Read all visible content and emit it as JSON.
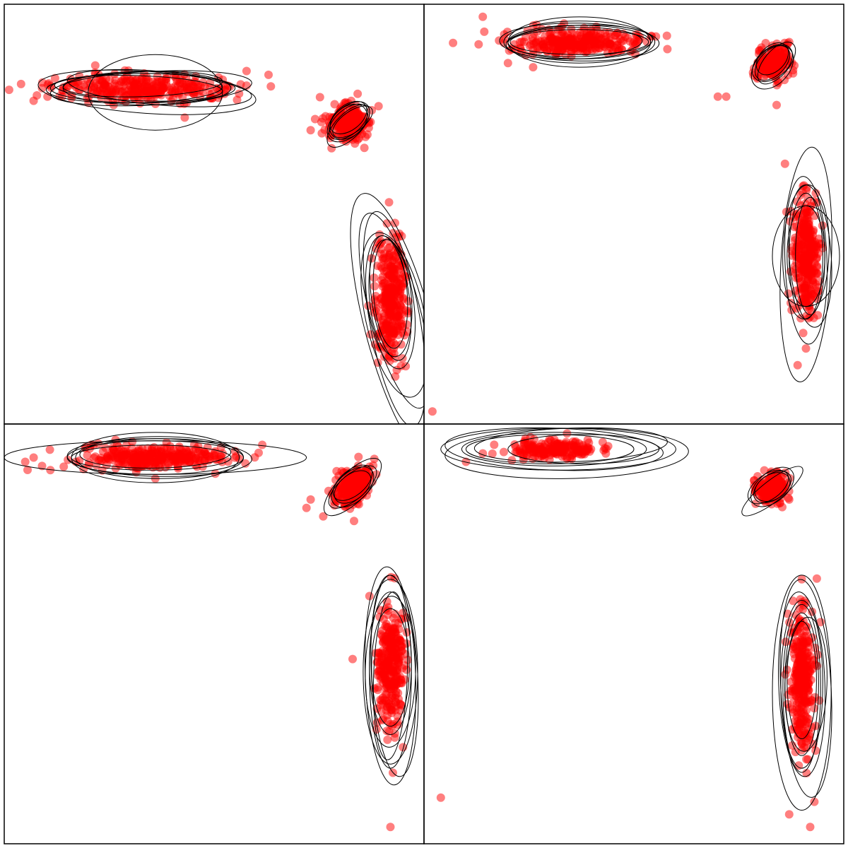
{
  "chart_data": [
    {
      "type": "scatter",
      "title": "",
      "xlabel": "",
      "ylabel": "",
      "xlim": [
        0,
        1
      ],
      "ylim": [
        0,
        1
      ],
      "grid": false,
      "point_color": "#ff0000",
      "ellipse_color": "#000000",
      "clusters": [
        {
          "center": [
            0.33,
            0.8
          ],
          "spread": [
            0.11,
            0.016
          ],
          "rotation_deg": 0,
          "n": 320,
          "outliers": [
            [
              0.04,
              0.81
            ],
            [
              0.07,
              0.77
            ],
            [
              0.09,
              0.8
            ],
            [
              0.43,
              0.73
            ]
          ]
        },
        {
          "center": [
            0.82,
            0.72
          ],
          "spread": [
            0.025,
            0.022
          ],
          "rotation_deg": 40,
          "n": 220,
          "outliers": [
            [
              0.73,
              0.7
            ]
          ]
        },
        {
          "center": [
            0.92,
            0.3
          ],
          "spread": [
            0.018,
            0.08
          ],
          "rotation_deg": 0,
          "n": 320,
          "outliers": [
            [
              0.88,
              0.28
            ]
          ]
        }
      ],
      "ellipses": [
        [
          0.33,
          0.8,
          0.22,
          0.035,
          0
        ],
        [
          0.35,
          0.8,
          0.24,
          0.04,
          3
        ],
        [
          0.32,
          0.8,
          0.2,
          0.03,
          -2
        ],
        [
          0.34,
          0.79,
          0.26,
          0.05,
          -4
        ],
        [
          0.36,
          0.79,
          0.16,
          0.09,
          0
        ],
        [
          0.31,
          0.8,
          0.21,
          0.035,
          1
        ],
        [
          0.37,
          0.8,
          0.22,
          0.04,
          -5
        ],
        [
          0.33,
          0.81,
          0.19,
          0.03,
          2
        ],
        [
          0.34,
          0.8,
          0.2,
          0.04,
          0
        ],
        [
          0.82,
          0.72,
          0.055,
          0.03,
          40
        ],
        [
          0.82,
          0.72,
          0.06,
          0.035,
          42
        ],
        [
          0.82,
          0.73,
          0.05,
          0.03,
          38
        ],
        [
          0.82,
          0.71,
          0.065,
          0.03,
          45
        ],
        [
          0.83,
          0.72,
          0.055,
          0.025,
          35
        ],
        [
          0.82,
          0.72,
          0.05,
          0.035,
          40
        ],
        [
          0.92,
          0.3,
          0.045,
          0.15,
          8
        ],
        [
          0.93,
          0.27,
          0.06,
          0.24,
          15
        ],
        [
          0.94,
          0.23,
          0.08,
          0.33,
          15
        ],
        [
          0.92,
          0.31,
          0.04,
          0.13,
          4
        ],
        [
          0.92,
          0.29,
          0.055,
          0.16,
          8
        ],
        [
          0.93,
          0.25,
          0.06,
          0.26,
          10
        ],
        [
          0.92,
          0.3,
          0.05,
          0.14,
          5
        ],
        [
          0.93,
          0.26,
          0.07,
          0.2,
          12
        ]
      ]
    },
    {
      "type": "scatter",
      "title": "",
      "xlabel": "",
      "ylabel": "",
      "xlim": [
        0,
        1
      ],
      "ylim": [
        0,
        1
      ],
      "grid": false,
      "point_color": "#ff0000",
      "ellipse_color": "#000000",
      "clusters": [
        {
          "center": [
            0.37,
            0.91
          ],
          "spread": [
            0.08,
            0.014
          ],
          "rotation_deg": 0,
          "n": 300,
          "outliers": [
            [
              0.14,
              0.97
            ],
            [
              0.2,
              0.86
            ],
            [
              0.26,
              0.85
            ]
          ]
        },
        {
          "center": [
            0.83,
            0.86
          ],
          "spread": [
            0.02,
            0.018
          ],
          "rotation_deg": 45,
          "n": 220,
          "outliers": [
            [
              0.7,
              0.78
            ],
            [
              0.72,
              0.78
            ],
            [
              0.84,
              0.76
            ],
            [
              0.87,
              0.91
            ]
          ]
        },
        {
          "center": [
            0.91,
            0.4
          ],
          "spread": [
            0.014,
            0.07
          ],
          "rotation_deg": 0,
          "n": 320,
          "outliers": [
            [
              0.02,
              0.03
            ],
            [
              0.89,
              0.14
            ],
            [
              0.91,
              0.18
            ],
            [
              0.86,
              0.62
            ]
          ]
        }
      ],
      "ellipses": [
        [
          0.37,
          0.91,
          0.17,
          0.04,
          0
        ],
        [
          0.37,
          0.91,
          0.18,
          0.05,
          0
        ],
        [
          0.36,
          0.91,
          0.16,
          0.035,
          1
        ],
        [
          0.37,
          0.91,
          0.19,
          0.045,
          -1
        ],
        [
          0.37,
          0.91,
          0.165,
          0.03,
          0
        ],
        [
          0.37,
          0.91,
          0.17,
          0.06,
          0
        ],
        [
          0.37,
          0.91,
          0.175,
          0.04,
          2
        ],
        [
          0.83,
          0.86,
          0.05,
          0.03,
          45
        ],
        [
          0.83,
          0.86,
          0.055,
          0.035,
          40
        ],
        [
          0.84,
          0.86,
          0.06,
          0.03,
          50
        ],
        [
          0.83,
          0.87,
          0.045,
          0.03,
          45
        ],
        [
          0.83,
          0.85,
          0.06,
          0.04,
          48
        ],
        [
          0.91,
          0.4,
          0.04,
          0.15,
          0
        ],
        [
          0.91,
          0.39,
          0.05,
          0.2,
          2
        ],
        [
          0.91,
          0.38,
          0.06,
          0.28,
          -3
        ],
        [
          0.91,
          0.4,
          0.045,
          0.12,
          0
        ],
        [
          0.92,
          0.4,
          0.05,
          0.17,
          4
        ],
        [
          0.91,
          0.4,
          0.08,
          0.12,
          0
        ],
        [
          0.92,
          0.4,
          0.035,
          0.14,
          0
        ],
        [
          0.91,
          0.41,
          0.055,
          0.16,
          -2
        ]
      ]
    },
    {
      "type": "scatter",
      "title": "",
      "xlabel": "",
      "ylabel": "",
      "xlim": [
        0,
        1
      ],
      "ylim": [
        0,
        1
      ],
      "grid": false,
      "point_color": "#ff0000",
      "ellipse_color": "#000000",
      "clusters": [
        {
          "center": [
            0.36,
            0.92
          ],
          "spread": [
            0.09,
            0.014
          ],
          "rotation_deg": 0,
          "n": 320,
          "outliers": [
            [
              0.05,
              0.91
            ],
            [
              0.07,
              0.92
            ],
            [
              0.09,
              0.9
            ],
            [
              0.11,
              0.89
            ],
            [
              0.36,
              0.87
            ]
          ]
        },
        {
          "center": [
            0.83,
            0.85
          ],
          "spread": [
            0.025,
            0.018
          ],
          "rotation_deg": 40,
          "n": 240,
          "outliers": [
            [
              0.72,
              0.8
            ],
            [
              0.73,
              0.82
            ],
            [
              0.76,
              0.78
            ]
          ]
        },
        {
          "center": [
            0.92,
            0.42
          ],
          "spread": [
            0.016,
            0.07
          ],
          "rotation_deg": 0,
          "n": 300,
          "outliers": [
            [
              0.83,
              0.44
            ],
            [
              0.92,
              0.04
            ],
            [
              0.87,
              0.59
            ],
            [
              0.95,
              0.55
            ],
            [
              0.95,
              0.23
            ]
          ]
        }
      ],
      "ellipses": [
        [
          0.36,
          0.92,
          0.21,
          0.04,
          0
        ],
        [
          0.36,
          0.92,
          0.36,
          0.04,
          0
        ],
        [
          0.37,
          0.92,
          0.2,
          0.05,
          0
        ],
        [
          0.36,
          0.93,
          0.18,
          0.035,
          1
        ],
        [
          0.37,
          0.92,
          0.22,
          0.045,
          -1
        ],
        [
          0.35,
          0.92,
          0.19,
          0.03,
          0
        ],
        [
          0.36,
          0.92,
          0.2,
          0.06,
          0
        ],
        [
          0.83,
          0.85,
          0.07,
          0.03,
          40
        ],
        [
          0.83,
          0.85,
          0.06,
          0.035,
          42
        ],
        [
          0.83,
          0.85,
          0.09,
          0.035,
          45
        ],
        [
          0.83,
          0.85,
          0.05,
          0.03,
          38
        ],
        [
          0.83,
          0.86,
          0.055,
          0.03,
          40
        ],
        [
          0.92,
          0.41,
          0.05,
          0.23,
          0
        ],
        [
          0.92,
          0.4,
          0.06,
          0.26,
          2
        ],
        [
          0.92,
          0.43,
          0.05,
          0.17,
          0
        ],
        [
          0.92,
          0.4,
          0.04,
          0.2,
          -2
        ],
        [
          0.92,
          0.41,
          0.065,
          0.22,
          0
        ],
        [
          0.93,
          0.4,
          0.055,
          0.24,
          3
        ],
        [
          0.92,
          0.42,
          0.045,
          0.14,
          0
        ],
        [
          0.92,
          0.41,
          0.06,
          0.18,
          -1
        ]
      ]
    },
    {
      "type": "scatter",
      "title": "",
      "xlabel": "",
      "ylabel": "",
      "xlim": [
        0,
        1
      ],
      "ylim": [
        0,
        1
      ],
      "grid": false,
      "point_color": "#ff0000",
      "ellipse_color": "#000000",
      "clusters": [
        {
          "center": [
            0.31,
            0.94
          ],
          "spread": [
            0.05,
            0.012
          ],
          "rotation_deg": 0,
          "n": 200,
          "outliers": [
            [
              0.14,
              0.93
            ],
            [
              0.1,
              0.91
            ]
          ]
        },
        {
          "center": [
            0.83,
            0.85
          ],
          "spread": [
            0.02,
            0.016
          ],
          "rotation_deg": 35,
          "n": 200,
          "outliers": [
            [
              0.79,
              0.81
            ],
            [
              0.87,
              0.82
            ]
          ]
        },
        {
          "center": [
            0.9,
            0.39
          ],
          "spread": [
            0.014,
            0.08
          ],
          "rotation_deg": 0,
          "n": 320,
          "outliers": [
            [
              0.04,
              0.11
            ],
            [
              0.9,
              0.63
            ],
            [
              0.87,
              0.07
            ],
            [
              0.92,
              0.04
            ],
            [
              0.93,
              0.1
            ]
          ]
        }
      ],
      "ellipses": [
        [
          0.31,
          0.94,
          0.22,
          0.04,
          0
        ],
        [
          0.32,
          0.94,
          0.28,
          0.05,
          0
        ],
        [
          0.35,
          0.95,
          0.23,
          0.04,
          2
        ],
        [
          0.31,
          0.94,
          0.26,
          0.05,
          -2
        ],
        [
          0.38,
          0.94,
          0.18,
          0.035,
          0
        ],
        [
          0.34,
          0.93,
          0.29,
          0.06,
          1
        ],
        [
          0.3,
          0.94,
          0.2,
          0.035,
          0
        ],
        [
          0.83,
          0.85,
          0.05,
          0.03,
          35
        ],
        [
          0.83,
          0.85,
          0.06,
          0.035,
          40
        ],
        [
          0.83,
          0.84,
          0.09,
          0.025,
          38
        ],
        [
          0.83,
          0.85,
          0.045,
          0.03,
          30
        ],
        [
          0.82,
          0.85,
          0.055,
          0.03,
          35
        ],
        [
          0.9,
          0.38,
          0.04,
          0.17,
          0
        ],
        [
          0.91,
          0.37,
          0.06,
          0.26,
          3
        ],
        [
          0.9,
          0.38,
          0.05,
          0.2,
          0
        ],
        [
          0.9,
          0.39,
          0.035,
          0.14,
          0
        ],
        [
          0.9,
          0.36,
          0.07,
          0.28,
          0
        ],
        [
          0.9,
          0.37,
          0.045,
          0.2,
          0
        ],
        [
          0.91,
          0.38,
          0.05,
          0.16,
          -2
        ],
        [
          0.9,
          0.38,
          0.055,
          0.22,
          2
        ]
      ]
    }
  ]
}
